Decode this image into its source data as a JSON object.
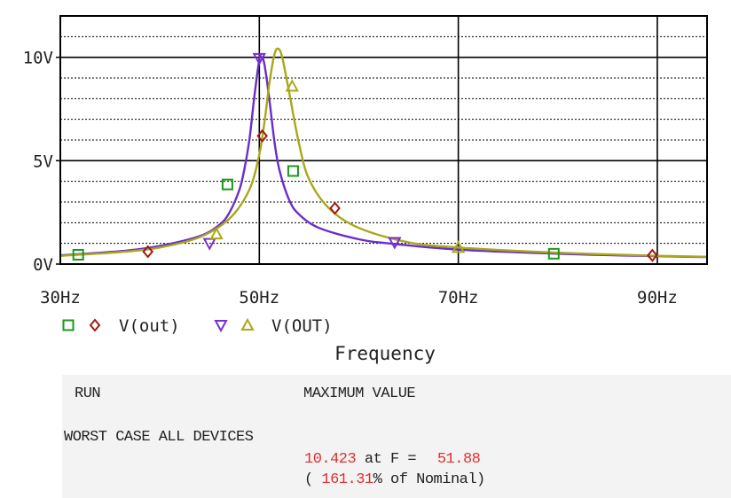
{
  "chart_data": {
    "type": "line",
    "xlabel": "Frequency",
    "ylabel": "",
    "xlim": [
      30,
      95
    ],
    "ylim": [
      0,
      12
    ],
    "x_ticks": [
      "30Hz",
      "50Hz",
      "70Hz",
      "90Hz"
    ],
    "y_ticks": [
      "0V",
      "5V",
      "10V"
    ],
    "grid": true,
    "legend": [
      {
        "markers": [
          "square",
          "diamond"
        ],
        "colors": [
          "#1a9a1a",
          "#a01818"
        ],
        "label": "V(out)"
      },
      {
        "markers": [
          "triangle-down",
          "triangle-up"
        ],
        "colors": [
          "#7a2ed0",
          "#a8a81a"
        ],
        "label": "V(OUT)"
      }
    ],
    "series": [
      {
        "name": "V(out)",
        "color": "#6a2ec8",
        "peak_x": 50.2,
        "x": [
          30,
          36,
          40,
          44,
          46,
          47,
          48,
          48.5,
          49,
          49.5,
          50,
          50.2,
          50.5,
          51,
          51.5,
          52,
          53,
          54,
          56,
          60,
          63,
          70,
          80,
          90,
          95
        ],
        "y": [
          0.42,
          0.62,
          0.88,
          1.35,
          1.9,
          2.5,
          3.6,
          4.6,
          6.0,
          8.1,
          9.9,
          10.0,
          9.7,
          8.0,
          6.0,
          4.6,
          3.1,
          2.4,
          1.75,
          1.2,
          1.0,
          0.7,
          0.5,
          0.38,
          0.34
        ]
      },
      {
        "name": "V(OUT)",
        "color": "#a8a81a",
        "peak_x": 51.88,
        "x": [
          30,
          36,
          40,
          44,
          47,
          49,
          50,
          50.5,
          51,
          51.5,
          51.88,
          52.3,
          53,
          54,
          55,
          57,
          60,
          65,
          70,
          80,
          90,
          95
        ],
        "y": [
          0.4,
          0.58,
          0.8,
          1.3,
          2.2,
          3.6,
          5.3,
          6.8,
          8.7,
          10.1,
          10.42,
          10.0,
          8.3,
          5.8,
          4.1,
          2.7,
          1.75,
          1.05,
          0.8,
          0.55,
          0.4,
          0.35
        ]
      }
    ],
    "markers": [
      {
        "shape": "square",
        "color": "#1a9a1a",
        "x": 31.8,
        "y": 0.45
      },
      {
        "shape": "square",
        "color": "#1a9a1a",
        "x": 46.8,
        "y": 3.85
      },
      {
        "shape": "square",
        "color": "#1a9a1a",
        "x": 53.4,
        "y": 4.5
      },
      {
        "shape": "square",
        "color": "#1a9a1a",
        "x": 79.6,
        "y": 0.5
      },
      {
        "shape": "diamond",
        "color": "#a01818",
        "x": 38.8,
        "y": 0.6
      },
      {
        "shape": "diamond",
        "color": "#a01818",
        "x": 50.3,
        "y": 6.2
      },
      {
        "shape": "diamond",
        "color": "#a01818",
        "x": 57.6,
        "y": 2.7
      },
      {
        "shape": "diamond",
        "color": "#a01818",
        "x": 89.5,
        "y": 0.42
      },
      {
        "shape": "triangle-down",
        "color": "#7a2ed0",
        "x": 45.0,
        "y": 1.0
      },
      {
        "shape": "triangle-down",
        "color": "#7a2ed0",
        "x": 50.0,
        "y": 9.95
      },
      {
        "shape": "triangle-down",
        "color": "#7a2ed0",
        "x": 63.6,
        "y": 1.05
      },
      {
        "shape": "triangle-up",
        "color": "#a8a81a",
        "x": 45.7,
        "y": 1.45
      },
      {
        "shape": "triangle-up",
        "color": "#a8a81a",
        "x": 53.3,
        "y": 8.6
      },
      {
        "shape": "triangle-up",
        "color": "#a8a81a",
        "x": 70.0,
        "y": 0.8
      }
    ]
  },
  "report": {
    "col_run": "RUN",
    "col_max": "MAXIMUM VALUE",
    "row_label": "WORST CASE ALL DEVICES",
    "max_value": "10.423",
    "at_f": " at F = ",
    "freq": "51.88",
    "pct_open": "( ",
    "pct_value": "161.31",
    "pct_suffix": "% of Nominal)"
  }
}
